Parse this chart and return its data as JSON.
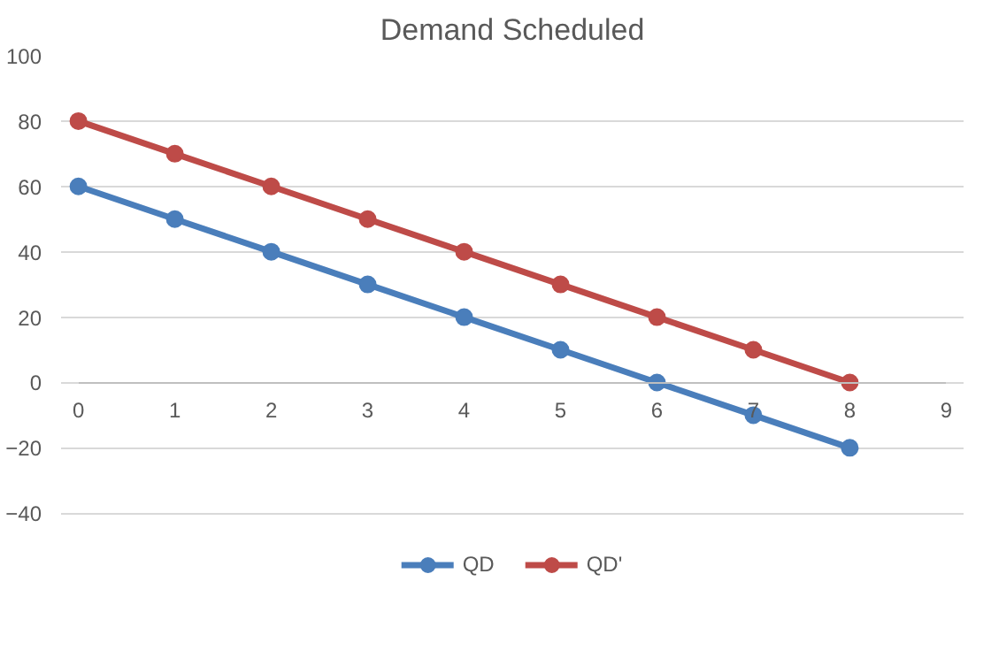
{
  "chart_data": {
    "type": "line",
    "title": "Demand Scheduled",
    "x": [
      0,
      1,
      2,
      3,
      4,
      5,
      6,
      7,
      8
    ],
    "series": [
      {
        "name": "QD",
        "color": "#4a7ebb",
        "values": [
          60,
          50,
          40,
          30,
          20,
          10,
          0,
          -10,
          -20
        ]
      },
      {
        "name": "QD'",
        "color": "#be4b48",
        "values": [
          80,
          70,
          60,
          50,
          40,
          30,
          20,
          10,
          0
        ]
      }
    ],
    "xlim": [
      0,
      9
    ],
    "xticks": [
      0,
      1,
      2,
      3,
      4,
      5,
      6,
      7,
      8,
      9
    ],
    "ylim": [
      -40,
      100
    ],
    "yticks": [
      -40,
      -20,
      0,
      20,
      40,
      60,
      80,
      100
    ],
    "grid": "y",
    "legend": "bottom",
    "marker": "circle",
    "line_style": "solid"
  }
}
